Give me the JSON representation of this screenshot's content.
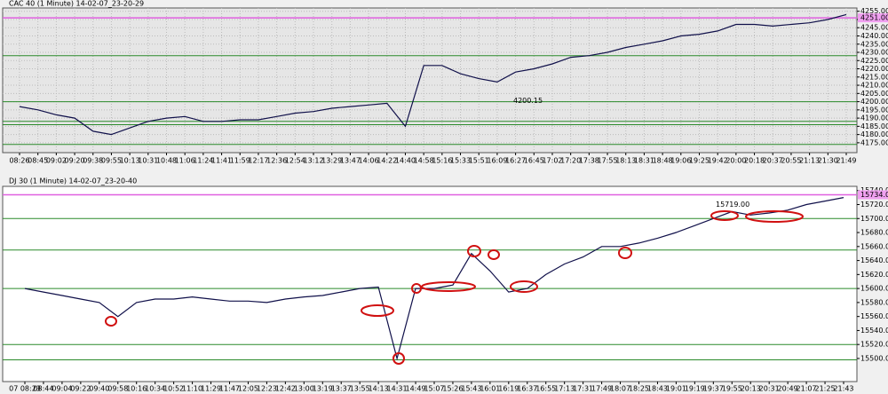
{
  "chart_data": [
    {
      "type": "line",
      "title": "CAC 40 (1 Minute) 14-02-07_23-20-29",
      "color": "#10104a",
      "background": "#e6e6e6",
      "grid": true,
      "categories": [
        "08:26",
        "08:45",
        "09:02",
        "09:20",
        "09:38",
        "09:55",
        "10:13",
        "10:31",
        "10:48",
        "11:06",
        "11:24",
        "11:41",
        "11:59",
        "12:17",
        "12:36",
        "12:54",
        "13:12",
        "13:29",
        "13:47",
        "14:06",
        "14:22",
        "14:40",
        "14:58",
        "15:16",
        "15:33",
        "15:51",
        "16:09",
        "16:27",
        "16:45",
        "17:02",
        "17:20",
        "17:38",
        "17:55",
        "18:13",
        "18:31",
        "18:48",
        "19:06",
        "19:25",
        "19:42",
        "20:00",
        "20:18",
        "20:37",
        "20:55",
        "21:13",
        "21:30",
        "21:49"
      ],
      "values": [
        4197,
        4195,
        4192,
        4190,
        4182,
        4180,
        4184,
        4188,
        4190,
        4191,
        4188,
        4188,
        4189,
        4189,
        4191,
        4193,
        4194,
        4196,
        4197,
        4198,
        4199,
        4185,
        4222,
        4222,
        4217,
        4214,
        4212,
        4218,
        4220,
        4223,
        4227,
        4228,
        4230,
        4233,
        4235,
        4237,
        4240,
        4241,
        4243,
        4247,
        4247,
        4246,
        4247,
        4248,
        4250,
        4253
      ],
      "ylim": [
        4169,
        4257
      ],
      "yticks": [
        {
          "value": 4175,
          "label": "4175.00"
        },
        {
          "value": 4180,
          "label": "4180.00"
        },
        {
          "value": 4185,
          "label": "4185.00"
        },
        {
          "value": 4190,
          "label": "4190.00"
        },
        {
          "value": 4195,
          "label": "4195.00"
        },
        {
          "value": 4200,
          "label": "4200.00"
        },
        {
          "value": 4205,
          "label": "4205.00"
        },
        {
          "value": 4210,
          "label": "4210.00"
        },
        {
          "value": 4215,
          "label": "4215.00"
        },
        {
          "value": 4220,
          "label": "4220.00"
        },
        {
          "value": 4225,
          "label": "4225.00"
        },
        {
          "value": 4230,
          "label": "4230.00"
        },
        {
          "value": 4235,
          "label": "4235.00"
        },
        {
          "value": 4240,
          "label": "4240.00"
        },
        {
          "value": 4245,
          "label": "4245.00"
        },
        {
          "value": 4250,
          "label": "4250.00"
        },
        {
          "value": 4255,
          "label": "4255.00"
        }
      ],
      "levels": [
        4228,
        4200,
        4188,
        4186,
        4174
      ],
      "annotations": [
        {
          "value": 4200.15,
          "label": "4200.15"
        }
      ],
      "last_price": {
        "value": 4251,
        "label": "4251.00"
      }
    },
    {
      "type": "line",
      "title": "DJ 30 (1 Minute) 14-02-07_23-20-40",
      "color": "#10104a",
      "background": "#ffffff",
      "grid": false,
      "categories": [
        "07 08:23",
        "08:44",
        "09:04",
        "09:22",
        "09:40",
        "09:58",
        "10:16",
        "10:34",
        "10:52",
        "11:10",
        "11:29",
        "11:47",
        "12:05",
        "12:23",
        "12:42",
        "13:00",
        "13:19",
        "13:37",
        "13:55",
        "14:13",
        "14:31",
        "14:49",
        "15:07",
        "15:26",
        "15:43",
        "16:01",
        "16:19",
        "16:37",
        "16:55",
        "17:13",
        "17:31",
        "17:49",
        "18:07",
        "18:25",
        "18:43",
        "19:01",
        "19:19",
        "19:37",
        "19:55",
        "20:13",
        "20:31",
        "20:49",
        "21:07",
        "21:25",
        "21:43"
      ],
      "values": [
        15600,
        15595,
        15590,
        15585,
        15580,
        15560,
        15580,
        15585,
        15585,
        15588,
        15585,
        15582,
        15582,
        15580,
        15585,
        15588,
        15590,
        15595,
        15600,
        15602,
        15500,
        15600,
        15600,
        15605,
        15650,
        15625,
        15595,
        15600,
        15620,
        15635,
        15645,
        15660,
        15660,
        15665,
        15672,
        15680,
        15690,
        15700,
        15710,
        15705,
        15708,
        15712,
        15720,
        15725,
        15730
      ],
      "ylim": [
        15467,
        15746
      ],
      "yticks": [
        {
          "value": 15500,
          "label": "15500.00"
        },
        {
          "value": 15520,
          "label": "15520.00"
        },
        {
          "value": 15540,
          "label": "15540.00"
        },
        {
          "value": 15560,
          "label": "15560.00"
        },
        {
          "value": 15580,
          "label": "15580.00"
        },
        {
          "value": 15600,
          "label": "15600.00"
        },
        {
          "value": 15620,
          "label": "15620.00"
        },
        {
          "value": 15640,
          "label": "15640.00"
        },
        {
          "value": 15660,
          "label": "15660.00"
        },
        {
          "value": 15680,
          "label": "15680.00"
        },
        {
          "value": 15700,
          "label": "15700.00"
        },
        {
          "value": 15720,
          "label": "15720.00"
        },
        {
          "value": 15740,
          "label": "15740.00"
        }
      ],
      "levels": [
        15700,
        15655,
        15600,
        15520,
        15498
      ],
      "annotations": [
        {
          "value": 15719,
          "label": "15719.00"
        }
      ],
      "last_price": {
        "value": 15734,
        "label": "15734.00"
      }
    }
  ]
}
